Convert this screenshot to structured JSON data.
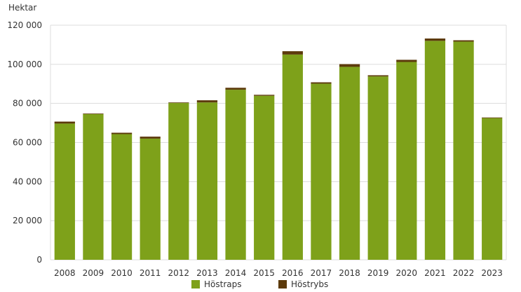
{
  "chart_data": {
    "type": "bar",
    "stacked": true,
    "ylabel": "Hektar",
    "ylim": [
      0,
      120000
    ],
    "yticks": [
      0,
      20000,
      40000,
      60000,
      80000,
      100000,
      120000
    ],
    "ytick_labels": [
      "0",
      "20 000",
      "40 000",
      "60 000",
      "80 000",
      "100 000",
      "120 000"
    ],
    "grid": true,
    "legend_position": "bottom",
    "categories": [
      "2008",
      "2009",
      "2010",
      "2011",
      "2012",
      "2013",
      "2014",
      "2015",
      "2016",
      "2017",
      "2018",
      "2019",
      "2020",
      "2021",
      "2022",
      "2023"
    ],
    "series": [
      {
        "name": "Höstraps",
        "color": "#7ea11a",
        "values": [
          69700,
          74500,
          64300,
          62000,
          80200,
          80500,
          87000,
          83900,
          105000,
          90100,
          98700,
          93800,
          101200,
          112000,
          111600,
          72500
        ]
      },
      {
        "name": "Höstrybs",
        "color": "#5c3a0b",
        "values": [
          1000,
          300,
          700,
          1000,
          300,
          1100,
          1000,
          500,
          1700,
          700,
          1400,
          600,
          1100,
          1200,
          700,
          300
        ]
      }
    ]
  }
}
